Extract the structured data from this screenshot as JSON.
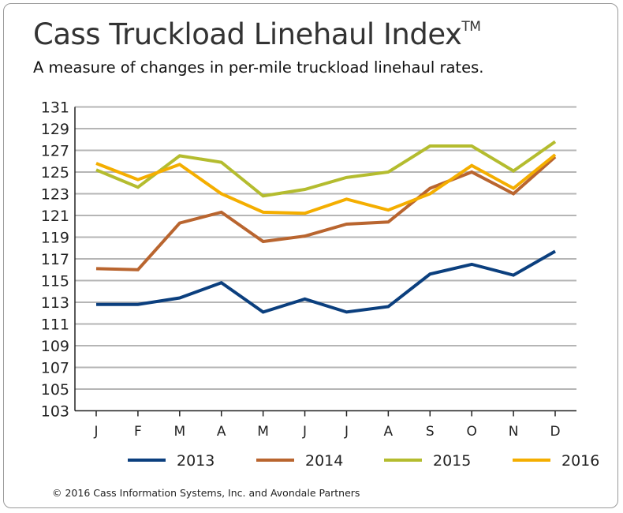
{
  "title": "Cass Truckload Linehaul Index",
  "title_mark": "TM",
  "subtitle": "A measure of changes in per-mile truckload linehaul rates.",
  "copyright": "© 2016 Cass Information Systems, Inc. and Avondale Partners",
  "chart_data": {
    "type": "line",
    "title": "Cass Truckload Linehaul Index",
    "categories": [
      "J",
      "F",
      "M",
      "A",
      "M",
      "J",
      "J",
      "A",
      "S",
      "O",
      "N",
      "D"
    ],
    "ylim": [
      103,
      131
    ],
    "yticks": [
      103,
      105,
      107,
      109,
      111,
      113,
      115,
      117,
      119,
      121,
      123,
      125,
      127,
      129,
      131
    ],
    "grid": true,
    "legend": "bottom",
    "series": [
      {
        "name": "2013",
        "color": "#0b3f7e",
        "values": [
          112.8,
          112.8,
          113.4,
          114.8,
          112.1,
          113.3,
          112.1,
          112.6,
          115.6,
          116.5,
          115.5,
          117.7
        ]
      },
      {
        "name": "2014",
        "color": "#b9652f",
        "values": [
          116.1,
          116.0,
          120.3,
          121.3,
          118.6,
          119.1,
          120.2,
          120.4,
          123.5,
          125.0,
          123.0,
          126.4
        ]
      },
      {
        "name": "2015",
        "color": "#b4bc2f",
        "values": [
          125.2,
          123.6,
          126.5,
          125.9,
          122.8,
          123.4,
          124.5,
          125.0,
          127.4,
          127.4,
          125.1,
          127.8
        ]
      },
      {
        "name": "2016",
        "color": "#f4ae00",
        "values": [
          125.8,
          124.3,
          125.7,
          123.0,
          121.3,
          121.2,
          122.5,
          121.5,
          123.0,
          125.6,
          123.5,
          126.6
        ]
      }
    ]
  }
}
